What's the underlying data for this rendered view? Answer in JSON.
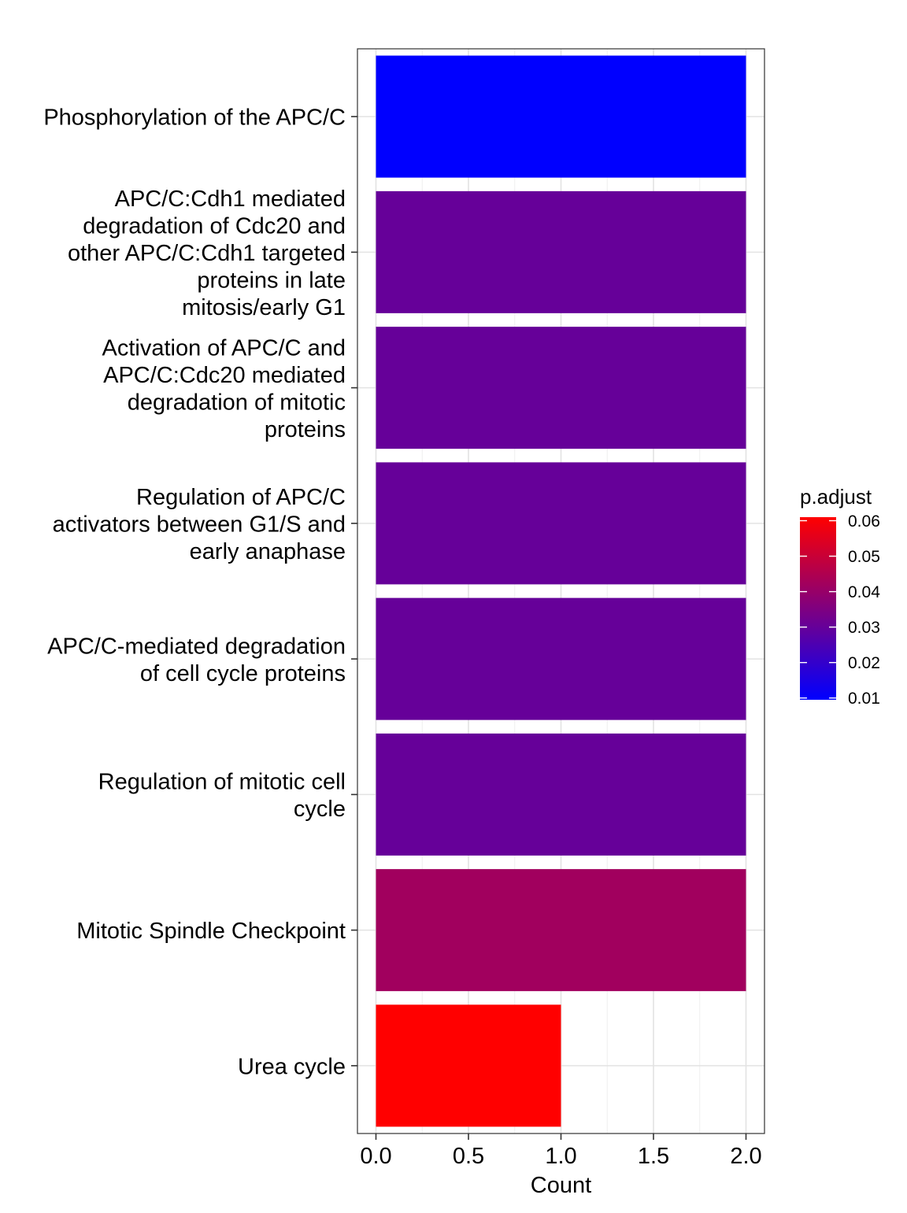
{
  "chart_data": {
    "type": "bar",
    "orientation": "horizontal",
    "categories": [
      [
        "Phosphorylation of the APC/C"
      ],
      [
        "APC/C:Cdh1 mediated",
        "degradation of Cdc20 and",
        "other APC/C:Cdh1 targeted",
        "proteins in late",
        "mitosis/early G1"
      ],
      [
        "Activation of APC/C and",
        "APC/C:Cdc20 mediated",
        "degradation of mitotic",
        "proteins"
      ],
      [
        "Regulation of APC/C",
        "activators between G1/S and",
        "early anaphase"
      ],
      [
        "APC/C-mediated degradation",
        "of cell cycle proteins"
      ],
      [
        "Regulation of mitotic cell",
        "cycle"
      ],
      [
        "Mitotic Spindle Checkpoint"
      ],
      [
        "Urea cycle"
      ]
    ],
    "values": [
      2,
      2,
      2,
      2,
      2,
      2,
      2,
      1
    ],
    "p_adjust": [
      0.0095,
      0.03,
      0.03,
      0.03,
      0.03,
      0.03,
      0.042,
      0.061
    ],
    "xlabel": "Count",
    "xlim": [
      -0.1,
      2.1
    ],
    "xticks": [
      "0.0",
      "0.5",
      "1.0",
      "1.5",
      "2.0"
    ],
    "xtick_values": [
      0,
      0.5,
      1.0,
      1.5,
      2.0
    ],
    "grid": true,
    "legend": {
      "title": "p.adjust",
      "position": "right",
      "ticks": [
        "0.06",
        "0.05",
        "0.04",
        "0.03",
        "0.02",
        "0.01"
      ],
      "tick_values": [
        0.06,
        0.05,
        0.04,
        0.03,
        0.02,
        0.01
      ],
      "range": [
        0.0095,
        0.061
      ],
      "color_low": "#0000ff",
      "color_high": "#ff0000"
    }
  }
}
